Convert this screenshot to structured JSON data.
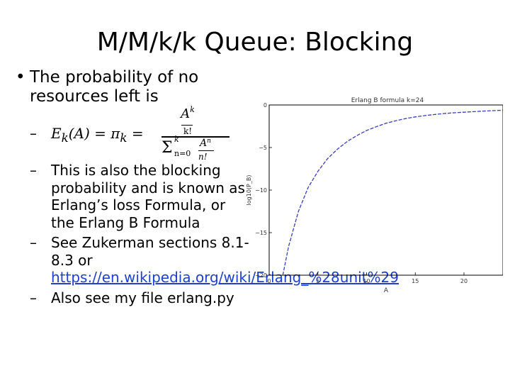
{
  "slide": {
    "title": "M/M/k/k Queue: Blocking",
    "bullet": "The probability of no resources left is",
    "formula": {
      "lhs": "E",
      "sub_k": "k",
      "lhs_rest": "(A) = π",
      "eq": " =",
      "num_base": "A",
      "num_exp": "k",
      "num_den": "k!",
      "sum_symbol": "Σ",
      "sum_upper": "k",
      "sum_lower": "n=0",
      "den_base": "A",
      "den_exp": "n",
      "den_den": "n!"
    },
    "sub_items": {
      "blocking": "This is also the blocking probability and is known as Erlang’s loss Formula, or the Erlang B Formula",
      "zukerman_text": "See Zukerman sections 8.1-8.3 or",
      "zukerman_link": "https://en.wikipedia.org/wiki/Erlang_%28unit%29",
      "erlang_file": "Also see my file erlang.py"
    }
  },
  "chart_data": {
    "type": "line",
    "title": "Erlang B formula k=24",
    "xlabel": "A",
    "ylabel": "log10(P_B)",
    "xlim": [
      0,
      24
    ],
    "ylim": [
      -20,
      0
    ],
    "x_ticks": [
      0,
      5,
      10,
      15,
      20
    ],
    "y_ticks": [
      0,
      -5,
      -10,
      -15,
      -20
    ],
    "grid": false,
    "series": [
      {
        "color": "#3a3fb8",
        "style": "dashed",
        "x": [
          1.4,
          2,
          3,
          4,
          5,
          6,
          7,
          8,
          9,
          10,
          11,
          12,
          13,
          14,
          15,
          16,
          17,
          18,
          19,
          20,
          21,
          22,
          23,
          24
        ],
        "y": [
          -20.0,
          -16.6,
          -12.5,
          -9.7,
          -7.8,
          -6.3,
          -5.2,
          -4.3,
          -3.6,
          -3.0,
          -2.55,
          -2.15,
          -1.85,
          -1.6,
          -1.4,
          -1.25,
          -1.12,
          -1.0,
          -0.92,
          -0.85,
          -0.78,
          -0.72,
          -0.67,
          -0.62
        ]
      }
    ]
  }
}
